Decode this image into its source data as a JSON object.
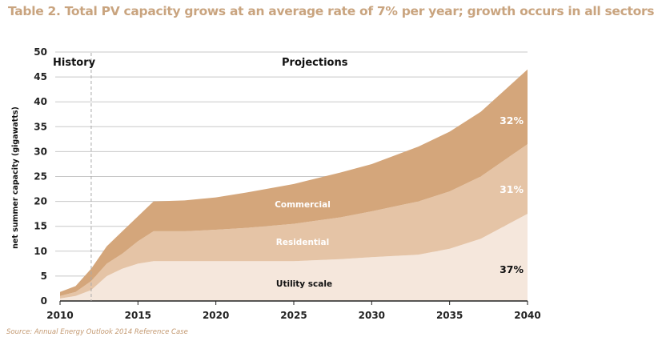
{
  "chart_data": {
    "type": "area",
    "stacked": true,
    "title": "Table 2. Total PV capacity grows at an average rate of 7% per year; growth occurs in all sectors",
    "xlabel": "",
    "ylabel": "net summer capacity (gigawatts)",
    "xlim": [
      2010,
      2040
    ],
    "ylim": [
      0,
      50
    ],
    "x_ticks": [
      2010,
      2015,
      2020,
      2025,
      2030,
      2035,
      2040
    ],
    "y_ticks": [
      0,
      5,
      10,
      15,
      20,
      25,
      30,
      35,
      40,
      45,
      50
    ],
    "grid": "horizontal",
    "history_projection_divider": 2012,
    "annotations": {
      "history": "History",
      "projections": "Projections"
    },
    "x": [
      2010,
      2011,
      2012,
      2013,
      2014,
      2015,
      2016,
      2018,
      2020,
      2022,
      2025,
      2028,
      2030,
      2033,
      2035,
      2037,
      2040
    ],
    "series": [
      {
        "name": "Utility scale",
        "share_label": "37%",
        "color": "#f5e7dc",
        "values": [
          0.5,
          1,
          2.2,
          5,
          6.5,
          7.5,
          8,
          8,
          8,
          8,
          8,
          8.4,
          8.8,
          9.3,
          10.5,
          12.5,
          17.5
        ]
      },
      {
        "name": "Residential",
        "share_label": "31%",
        "color": "#e5c4a6",
        "values": [
          0.5,
          0.8,
          1.8,
          2.5,
          3,
          4.5,
          6,
          6,
          6.3,
          6.7,
          7.5,
          8.4,
          9.2,
          10.7,
          11.5,
          12.5,
          14
        ]
      },
      {
        "name": "Commercial",
        "share_label": "32%",
        "color": "#d4a67b",
        "values": [
          0.8,
          1.2,
          2.5,
          3.5,
          4.5,
          5,
          6,
          6.2,
          6.5,
          7.1,
          8,
          9,
          9.5,
          11,
          12,
          13,
          15
        ]
      }
    ],
    "source": "Source: Annual Energy Outlook 2014 Reference Case"
  }
}
